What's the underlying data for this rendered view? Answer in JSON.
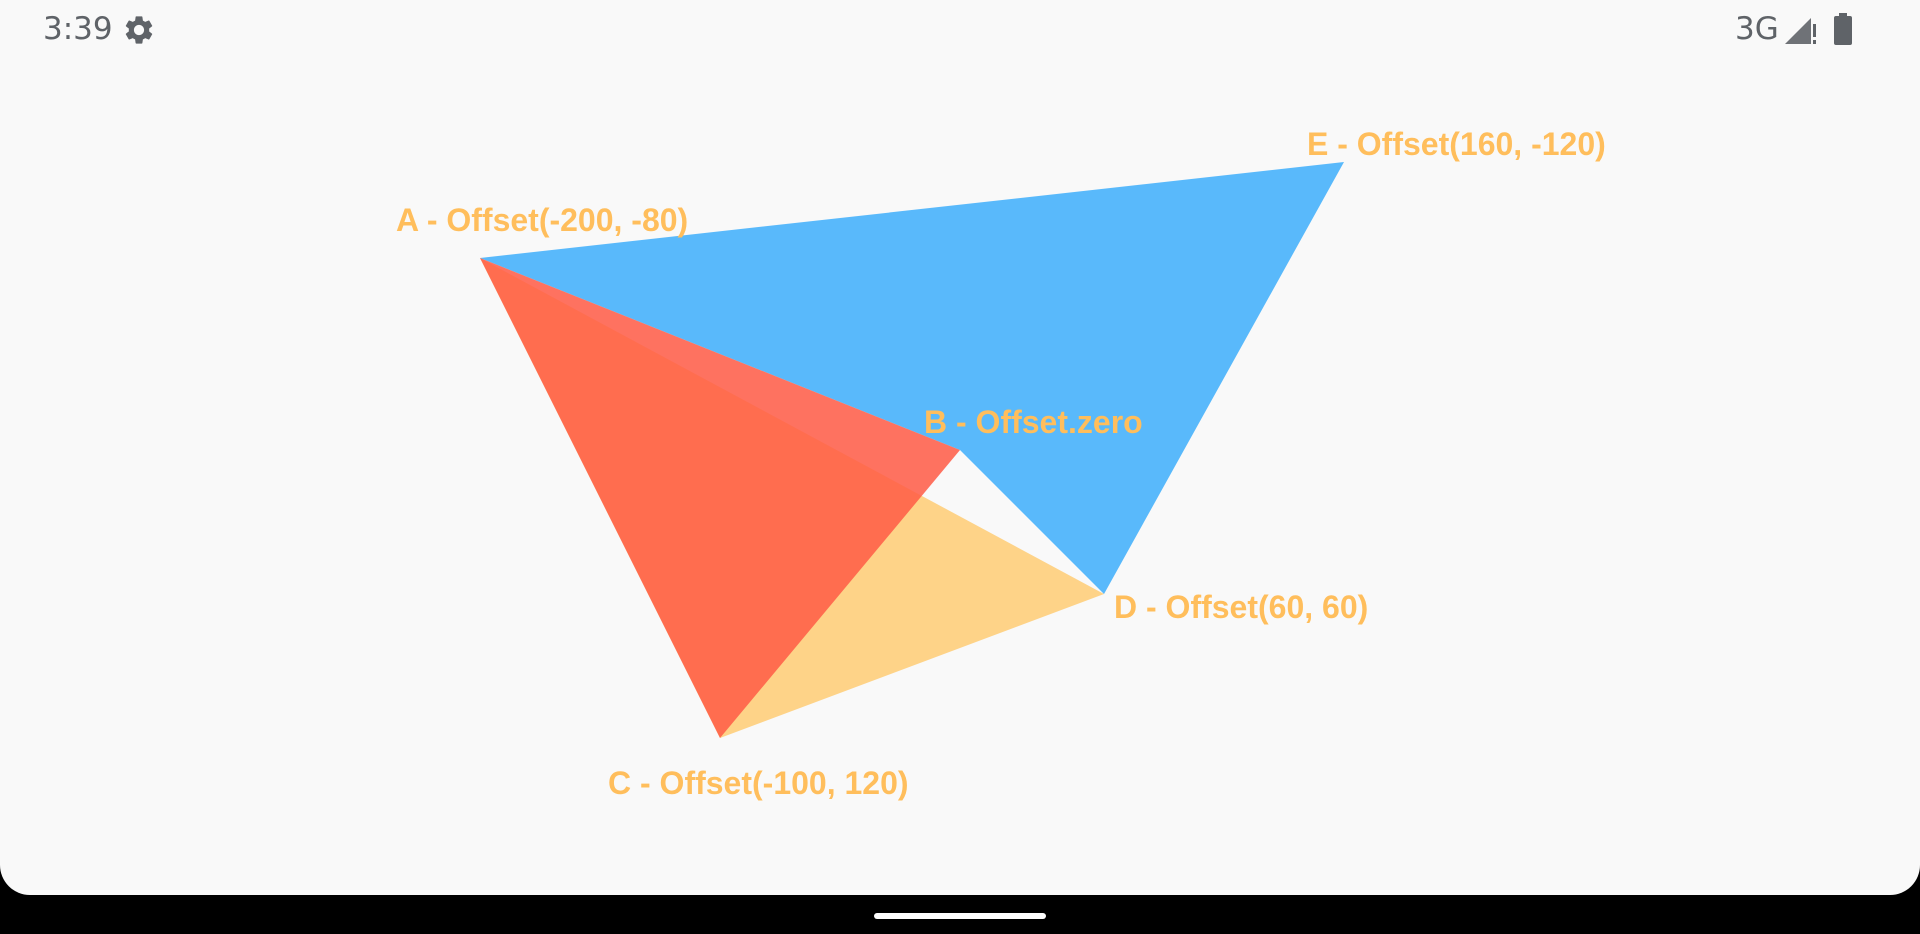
{
  "status_bar": {
    "time": "3:39",
    "network": "3G",
    "settings_icon": "gear-icon",
    "signal_icon": "cell-signal-icon",
    "battery_icon": "battery-icon"
  },
  "points": {
    "a": {
      "label": "A - Offset(-200, -80)",
      "x": -200,
      "y": -80
    },
    "b": {
      "label": "B - Offset.zero",
      "x": 0,
      "y": 0
    },
    "c": {
      "label": "C - Offset(-100, 120)",
      "x": -100,
      "y": 120
    },
    "d": {
      "label": "D - Offset(60, 60)",
      "x": 60,
      "y": 60
    },
    "e": {
      "label": "E - Offset(160, -120)",
      "x": 160,
      "y": -120
    }
  },
  "colors": {
    "background": "#f9f9f9",
    "triangle_acd": "#ffc561",
    "triangle_abe_d": "#3daefc",
    "triangle_abc": "#ff5a45",
    "label": "#ffbe5c"
  },
  "nav_bar": {
    "home_handle": "home-indicator"
  }
}
